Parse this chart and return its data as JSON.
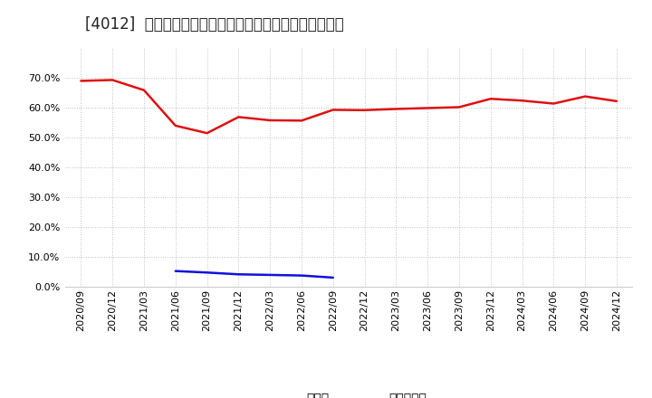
{
  "title": "[4012]  現預金、有利子負債の総資産に対する比率の推移",
  "x_labels": [
    "2020/09",
    "2020/12",
    "2021/03",
    "2021/06",
    "2021/09",
    "2021/12",
    "2022/03",
    "2022/06",
    "2022/09",
    "2022/12",
    "2023/03",
    "2023/06",
    "2023/09",
    "2023/12",
    "2024/03",
    "2024/06",
    "2024/09",
    "2024/12"
  ],
  "cash_ratio": [
    0.689,
    0.692,
    0.658,
    0.539,
    0.514,
    0.568,
    0.557,
    0.556,
    0.592,
    0.591,
    0.595,
    0.598,
    0.601,
    0.629,
    0.623,
    0.613,
    0.637,
    0.621
  ],
  "debt_ratio": [
    null,
    null,
    null,
    0.052,
    0.047,
    0.041,
    0.039,
    0.037,
    0.03,
    null,
    null,
    null,
    null,
    null,
    null,
    null,
    null,
    null
  ],
  "cash_color": "#dd1111",
  "debt_color": "#1111dd",
  "bg_color": "#ffffff",
  "plot_bg_color": "#ffffff",
  "grid_color": "#999999",
  "ylim": [
    0.0,
    0.8
  ],
  "yticks": [
    0.0,
    0.1,
    0.2,
    0.3,
    0.4,
    0.5,
    0.6,
    0.7
  ],
  "legend_cash": "現預金",
  "legend_debt": "有利子負債",
  "title_fontsize": 12,
  "tick_fontsize": 8,
  "legend_fontsize": 10
}
